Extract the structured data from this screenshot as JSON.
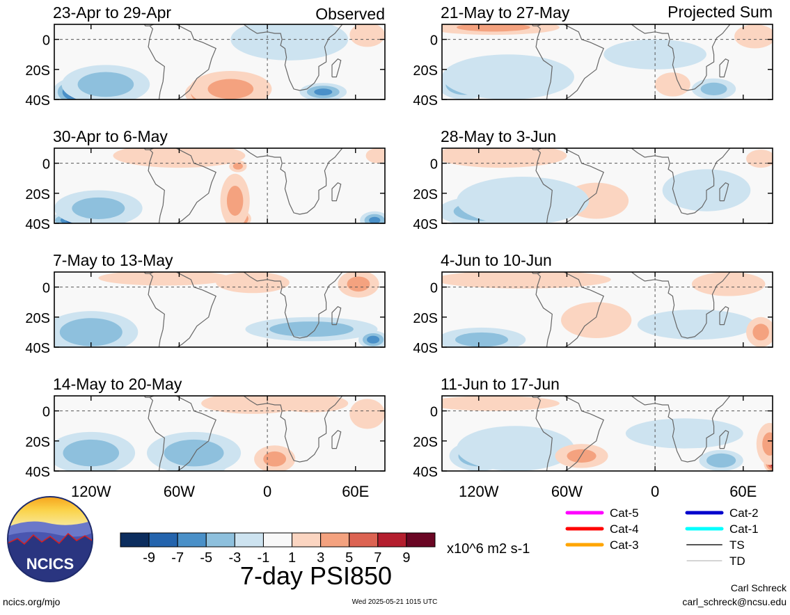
{
  "chart_data": {
    "type": "heatmap",
    "title": "7-day PSI850",
    "units": "x10^6 m2 s-1",
    "column_headers": [
      "Observed",
      "Projected Sum"
    ],
    "y_ticks": [
      "0",
      "20S",
      "40S"
    ],
    "x_ticks": [
      "120W",
      "60W",
      "0",
      "60E"
    ],
    "lat_range": [
      -40,
      10
    ],
    "lon_range": [
      -145,
      80
    ],
    "colorbar": {
      "ticks": [
        "-9",
        "-7",
        "-5",
        "-3",
        "-1",
        "1",
        "3",
        "5",
        "7",
        "9"
      ],
      "colors": [
        "#0c2d5e",
        "#2464ad",
        "#4a90c8",
        "#8ec0dd",
        "#cde3f0",
        "#f8f8f8",
        "#fbd5c1",
        "#f4a27f",
        "#dc6352",
        "#b41e2e",
        "#6a0624"
      ]
    },
    "panels": [
      {
        "period": "23-Apr to 29-Apr",
        "column": "Observed",
        "features": [
          {
            "lon": -128,
            "lat": -35,
            "value": -9.5,
            "rlon": 18,
            "rlat": 10
          },
          {
            "lon": -110,
            "lat": -30,
            "value": -4,
            "rlon": 30,
            "rlat": 13
          },
          {
            "lon": -40,
            "lat": -36,
            "value": 6.5,
            "rlon": 16,
            "rlat": 9
          },
          {
            "lon": -25,
            "lat": -33,
            "value": 3,
            "rlon": 28,
            "rlat": 12
          },
          {
            "lon": 38,
            "lat": -35,
            "value": -5,
            "rlon": 16,
            "rlat": 6
          },
          {
            "lon": 15,
            "lat": 0,
            "value": -2,
            "rlon": 40,
            "rlat": 14
          },
          {
            "lon": 68,
            "lat": 3,
            "value": 2,
            "rlon": 12,
            "rlat": 8
          }
        ]
      },
      {
        "period": "30-Apr to 6-May",
        "column": "Observed",
        "features": [
          {
            "lon": -130,
            "lat": -38,
            "value": -8.5,
            "rlon": 18,
            "rlat": 6
          },
          {
            "lon": -115,
            "lat": -30,
            "value": -3.5,
            "rlon": 30,
            "rlat": 12
          },
          {
            "lon": -20,
            "lat": -37,
            "value": 8,
            "rlon": 9,
            "rlat": 6
          },
          {
            "lon": -22,
            "lat": -25,
            "value": 3,
            "rlon": 10,
            "rlat": 18
          },
          {
            "lon": -20,
            "lat": -2,
            "value": 3,
            "rlon": 6,
            "rlat": 4
          },
          {
            "lon": -60,
            "lat": 5,
            "value": 1.5,
            "rlon": 45,
            "rlat": 8
          },
          {
            "lon": 73,
            "lat": -38,
            "value": -5,
            "rlon": 10,
            "rlat": 6
          },
          {
            "lon": 75,
            "lat": 5,
            "value": 2,
            "rlon": 8,
            "rlat": 5
          }
        ]
      },
      {
        "period": "7-May to 13-May",
        "column": "Observed",
        "features": [
          {
            "lon": -132,
            "lat": -35,
            "value": -9.5,
            "rlon": 16,
            "rlat": 8
          },
          {
            "lon": -120,
            "lat": -30,
            "value": -4.5,
            "rlon": 32,
            "rlat": 14
          },
          {
            "lon": 30,
            "lat": -28,
            "value": -4,
            "rlon": 45,
            "rlat": 8
          },
          {
            "lon": 72,
            "lat": -35,
            "value": -5.5,
            "rlon": 10,
            "rlat": 6
          },
          {
            "lon": 62,
            "lat": 2,
            "value": 3,
            "rlon": 14,
            "rlat": 9
          },
          {
            "lon": -70,
            "lat": 6,
            "value": 1.5,
            "rlon": 45,
            "rlat": 5
          },
          {
            "lon": -10,
            "lat": 3,
            "value": 1.5,
            "rlon": 25,
            "rlat": 7
          }
        ]
      },
      {
        "period": "14-May to 20-May",
        "column": "Observed",
        "features": [
          {
            "lon": -135,
            "lat": -30,
            "value": -8.5,
            "rlon": 12,
            "rlat": 7
          },
          {
            "lon": -120,
            "lat": -28,
            "value": -4,
            "rlon": 30,
            "rlat": 14
          },
          {
            "lon": -45,
            "lat": -35,
            "value": -9.5,
            "rlon": 18,
            "rlat": 9
          },
          {
            "lon": -50,
            "lat": -28,
            "value": -4,
            "rlon": 32,
            "rlat": 14
          },
          {
            "lon": 5,
            "lat": -32,
            "value": 3,
            "rlon": 14,
            "rlat": 9
          },
          {
            "lon": -10,
            "lat": 5,
            "value": 2,
            "rlon": 35,
            "rlat": 7
          },
          {
            "lon": 68,
            "lat": -2,
            "value": 2,
            "rlon": 12,
            "rlat": 10
          },
          {
            "lon": 30,
            "lat": 5,
            "value": 1.5,
            "rlon": 25,
            "rlat": 6
          }
        ]
      },
      {
        "period": "21-May to 27-May",
        "column": "Projected Sum",
        "features": [
          {
            "lon": -110,
            "lat": 8,
            "value": 3,
            "rlon": 45,
            "rlat": 5
          },
          {
            "lon": -130,
            "lat": -30,
            "value": -5,
            "rlon": 18,
            "rlat": 10
          },
          {
            "lon": -100,
            "lat": -25,
            "value": -2.5,
            "rlon": 45,
            "rlat": 15
          },
          {
            "lon": 40,
            "lat": -33,
            "value": -3.5,
            "rlon": 15,
            "rlat": 7
          },
          {
            "lon": 12,
            "lat": -30,
            "value": 2,
            "rlon": 12,
            "rlat": 8
          },
          {
            "lon": 68,
            "lat": 2,
            "value": 2,
            "rlon": 14,
            "rlat": 8
          },
          {
            "lon": 0,
            "lat": -10,
            "value": -1.5,
            "rlon": 35,
            "rlat": 10
          }
        ]
      },
      {
        "period": "28-May to 3-Jun",
        "column": "Projected Sum",
        "features": [
          {
            "lon": -105,
            "lat": 5,
            "value": 2.5,
            "rlon": 45,
            "rlat": 8
          },
          {
            "lon": -40,
            "lat": -27,
            "value": 6,
            "rlon": 10,
            "rlat": 6
          },
          {
            "lon": -40,
            "lat": -25,
            "value": 2.5,
            "rlon": 22,
            "rlat": 12
          },
          {
            "lon": -118,
            "lat": -32,
            "value": -4,
            "rlon": 30,
            "rlat": 10
          },
          {
            "lon": -90,
            "lat": -25,
            "value": -2,
            "rlon": 45,
            "rlat": 16
          },
          {
            "lon": 35,
            "lat": -18,
            "value": -1.5,
            "rlon": 30,
            "rlat": 14
          },
          {
            "lon": 72,
            "lat": 3,
            "value": 2,
            "rlon": 10,
            "rlat": 6
          }
        ]
      },
      {
        "period": "4-Jun to 10-Jun",
        "column": "Projected Sum",
        "features": [
          {
            "lon": -90,
            "lat": 5,
            "value": 2,
            "rlon": 60,
            "rlat": 6
          },
          {
            "lon": -42,
            "lat": -25,
            "value": 5.5,
            "rlon": 10,
            "rlat": 6
          },
          {
            "lon": -40,
            "lat": -22,
            "value": 2.5,
            "rlon": 24,
            "rlat": 12
          },
          {
            "lon": -118,
            "lat": -35,
            "value": -3.5,
            "rlon": 30,
            "rlat": 8
          },
          {
            "lon": 28,
            "lat": -25,
            "value": -2.5,
            "rlon": 40,
            "rlat": 10
          },
          {
            "lon": 72,
            "lat": -30,
            "value": 3,
            "rlon": 10,
            "rlat": 10
          },
          {
            "lon": 50,
            "lat": 2,
            "value": 1.5,
            "rlon": 25,
            "rlat": 8
          }
        ]
      },
      {
        "period": "11-Jun to 17-Jun",
        "column": "Projected Sum",
        "features": [
          {
            "lon": -110,
            "lat": 5,
            "value": 2,
            "rlon": 45,
            "rlat": 5
          },
          {
            "lon": -120,
            "lat": -30,
            "value": -5,
            "rlon": 20,
            "rlat": 10
          },
          {
            "lon": -95,
            "lat": -25,
            "value": -2,
            "rlon": 40,
            "rlat": 15
          },
          {
            "lon": -50,
            "lat": -30,
            "value": 3,
            "rlon": 18,
            "rlat": 8
          },
          {
            "lon": 20,
            "lat": -15,
            "value": -1.5,
            "rlon": 40,
            "rlat": 10
          },
          {
            "lon": 45,
            "lat": -33,
            "value": -4.5,
            "rlon": 15,
            "rlat": 7
          },
          {
            "lon": 80,
            "lat": -35,
            "value": 7,
            "rlon": 6,
            "rlat": 6
          },
          {
            "lon": 78,
            "lat": -22,
            "value": 3,
            "rlon": 9,
            "rlat": 14
          }
        ]
      }
    ]
  },
  "legend": {
    "items": [
      {
        "label": "Cat-5",
        "color": "#ff00ff"
      },
      {
        "label": "Cat-4",
        "color": "#ff0000"
      },
      {
        "label": "Cat-3",
        "color": "#ffa500"
      },
      {
        "label": "Cat-2",
        "color": "#0000cc"
      },
      {
        "label": "Cat-1",
        "color": "#00ffff"
      },
      {
        "label": "TS",
        "color": "#555555"
      },
      {
        "label": "TD",
        "color": "#aaaaaa"
      }
    ]
  },
  "logo": {
    "text": "NCICS"
  },
  "footer": {
    "url": "ncics.org/mjo",
    "timestamp": "Wed 2025-05-21 1015 UTC",
    "author": "Carl Schreck",
    "email": "carl_schreck@ncsu.edu"
  }
}
